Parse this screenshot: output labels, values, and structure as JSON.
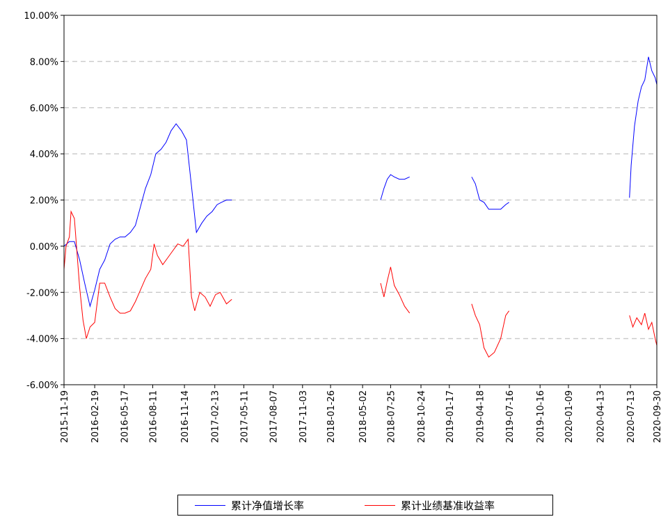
{
  "chart_data": {
    "type": "line",
    "title": "",
    "xlabel": "",
    "ylabel": "",
    "x_range": [
      "2015-11-19",
      "2020-09-30"
    ],
    "ylim": [
      -6,
      10
    ],
    "y_ticks": [
      "10.00%",
      "8.00%",
      "6.00%",
      "4.00%",
      "2.00%",
      "0.00%",
      "-2.00%",
      "-4.00%",
      "-6.00%"
    ],
    "x_ticks": [
      "2015-11-19",
      "2016-02-19",
      "2016-05-17",
      "2016-08-11",
      "2016-11-14",
      "2017-02-13",
      "2017-05-11",
      "2017-08-07",
      "2017-11-03",
      "2018-01-26",
      "2018-05-02",
      "2018-07-25",
      "2018-10-24",
      "2019-01-17",
      "2019-04-18",
      "2019-07-16",
      "2019-10-16",
      "2020-01-09",
      "2020-04-13",
      "2020-07-13",
      "2020-09-30"
    ],
    "grid": "horizontal dashed",
    "legend_position": "bottom-center",
    "series": [
      {
        "name": "累计净值增长率",
        "color": "#0000ff",
        "segments": [
          [
            [
              "2015-11-19",
              0.0
            ],
            [
              "2015-12-05",
              0.2
            ],
            [
              "2015-12-20",
              0.2
            ],
            [
              "2016-01-05",
              -0.6
            ],
            [
              "2016-01-20",
              -1.6
            ],
            [
              "2016-02-05",
              -2.6
            ],
            [
              "2016-02-19",
              -1.9
            ],
            [
              "2016-03-05",
              -1.0
            ],
            [
              "2016-03-20",
              -0.6
            ],
            [
              "2016-04-05",
              0.1
            ],
            [
              "2016-04-20",
              0.3
            ],
            [
              "2016-05-05",
              0.4
            ],
            [
              "2016-05-20",
              0.4
            ],
            [
              "2016-06-05",
              0.6
            ],
            [
              "2016-06-20",
              0.9
            ],
            [
              "2016-07-05",
              1.7
            ],
            [
              "2016-07-20",
              2.5
            ],
            [
              "2016-08-05",
              3.1
            ],
            [
              "2016-08-20",
              4.0
            ],
            [
              "2016-09-05",
              4.2
            ],
            [
              "2016-09-20",
              4.5
            ],
            [
              "2016-10-05",
              5.0
            ],
            [
              "2016-10-20",
              5.3
            ],
            [
              "2016-11-05",
              5.0
            ],
            [
              "2016-11-20",
              4.6
            ],
            [
              "2016-12-05",
              2.6
            ],
            [
              "2016-12-20",
              0.6
            ],
            [
              "2017-01-05",
              1.0
            ],
            [
              "2017-01-20",
              1.3
            ],
            [
              "2017-02-05",
              1.5
            ],
            [
              "2017-02-20",
              1.8
            ],
            [
              "2017-03-05",
              1.9
            ],
            [
              "2017-03-20",
              2.0
            ],
            [
              "2017-04-05",
              2.0
            ]
          ],
          [
            [
              "2018-06-25",
              2.0
            ],
            [
              "2018-07-05",
              2.5
            ],
            [
              "2018-07-15",
              2.9
            ],
            [
              "2018-07-25",
              3.1
            ],
            [
              "2018-08-05",
              3.0
            ],
            [
              "2018-08-20",
              2.9
            ],
            [
              "2018-09-05",
              2.9
            ],
            [
              "2018-09-20",
              3.0
            ]
          ],
          [
            [
              "2019-03-25",
              3.0
            ],
            [
              "2019-04-05",
              2.7
            ],
            [
              "2019-04-18",
              2.0
            ],
            [
              "2019-05-01",
              1.9
            ],
            [
              "2019-05-15",
              1.6
            ],
            [
              "2019-06-01",
              1.6
            ],
            [
              "2019-06-20",
              1.6
            ],
            [
              "2019-07-05",
              1.8
            ],
            [
              "2019-07-15",
              1.9
            ]
          ],
          [
            [
              "2020-07-10",
              2.1
            ],
            [
              "2020-07-15",
              3.5
            ],
            [
              "2020-07-25",
              5.2
            ],
            [
              "2020-08-05",
              6.3
            ],
            [
              "2020-08-15",
              6.9
            ],
            [
              "2020-08-25",
              7.2
            ],
            [
              "2020-09-05",
              8.2
            ],
            [
              "2020-09-15",
              7.6
            ],
            [
              "2020-09-25",
              7.3
            ],
            [
              "2020-09-30",
              7.0
            ]
          ]
        ]
      },
      {
        "name": "累计业绩基准收益率",
        "color": "#ff0000",
        "segments": [
          [
            [
              "2015-11-19",
              -1.0
            ],
            [
              "2015-11-25",
              0.0
            ],
            [
              "2015-12-05",
              0.4
            ],
            [
              "2015-12-10",
              1.5
            ],
            [
              "2015-12-20",
              1.2
            ],
            [
              "2016-01-05",
              -1.8
            ],
            [
              "2016-01-15",
              -3.2
            ],
            [
              "2016-01-25",
              -4.0
            ],
            [
              "2016-02-05",
              -3.5
            ],
            [
              "2016-02-19",
              -3.3
            ],
            [
              "2016-03-05",
              -1.6
            ],
            [
              "2016-03-20",
              -1.6
            ],
            [
              "2016-04-05",
              -2.2
            ],
            [
              "2016-04-20",
              -2.7
            ],
            [
              "2016-05-05",
              -2.9
            ],
            [
              "2016-05-20",
              -2.9
            ],
            [
              "2016-06-05",
              -2.8
            ],
            [
              "2016-06-20",
              -2.4
            ],
            [
              "2016-07-05",
              -1.9
            ],
            [
              "2016-07-20",
              -1.4
            ],
            [
              "2016-08-05",
              -1.0
            ],
            [
              "2016-08-15",
              0.1
            ],
            [
              "2016-08-25",
              -0.4
            ],
            [
              "2016-09-10",
              -0.8
            ],
            [
              "2016-09-25",
              -0.5
            ],
            [
              "2016-10-10",
              -0.2
            ],
            [
              "2016-10-25",
              0.1
            ],
            [
              "2016-11-10",
              0.0
            ],
            [
              "2016-11-25",
              0.3
            ],
            [
              "2016-12-05",
              -2.2
            ],
            [
              "2016-12-15",
              -2.8
            ],
            [
              "2016-12-30",
              -2.0
            ],
            [
              "2017-01-15",
              -2.2
            ],
            [
              "2017-01-30",
              -2.6
            ],
            [
              "2017-02-15",
              -2.1
            ],
            [
              "2017-03-01",
              -2.0
            ],
            [
              "2017-03-20",
              -2.5
            ],
            [
              "2017-04-05",
              -2.3
            ]
          ],
          [
            [
              "2018-06-25",
              -1.6
            ],
            [
              "2018-07-05",
              -2.2
            ],
            [
              "2018-07-15",
              -1.5
            ],
            [
              "2018-07-25",
              -0.9
            ],
            [
              "2018-08-05",
              -1.7
            ],
            [
              "2018-08-20",
              -2.1
            ],
            [
              "2018-09-05",
              -2.6
            ],
            [
              "2018-09-20",
              -2.9
            ]
          ],
          [
            [
              "2019-03-25",
              -2.5
            ],
            [
              "2019-04-05",
              -3.0
            ],
            [
              "2019-04-18",
              -3.4
            ],
            [
              "2019-05-01",
              -4.4
            ],
            [
              "2019-05-15",
              -4.8
            ],
            [
              "2019-06-01",
              -4.6
            ],
            [
              "2019-06-20",
              -4.0
            ],
            [
              "2019-07-05",
              -3.0
            ],
            [
              "2019-07-15",
              -2.8
            ]
          ],
          [
            [
              "2020-07-10",
              -3.0
            ],
            [
              "2020-07-20",
              -3.5
            ],
            [
              "2020-08-01",
              -3.1
            ],
            [
              "2020-08-15",
              -3.4
            ],
            [
              "2020-08-25",
              -2.9
            ],
            [
              "2020-09-05",
              -3.6
            ],
            [
              "2020-09-15",
              -3.3
            ],
            [
              "2020-09-25",
              -4.0
            ],
            [
              "2020-09-30",
              -4.3
            ]
          ]
        ]
      }
    ]
  }
}
